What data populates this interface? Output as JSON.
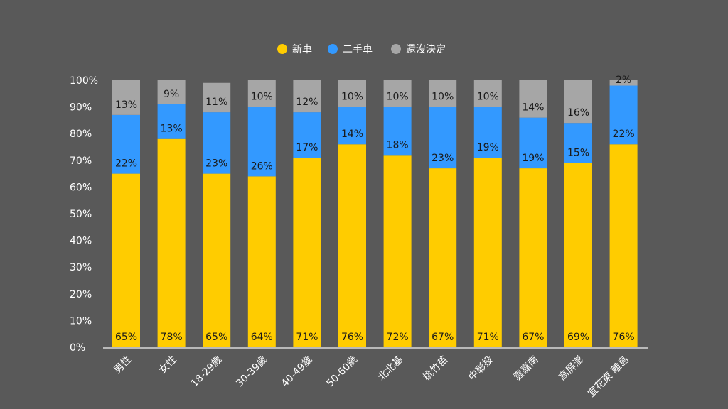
{
  "chart_data": {
    "type": "bar",
    "stacked": true,
    "categories": [
      "男性",
      "女性",
      "18-29歲",
      "30-39歲",
      "40-49歲",
      "50-60歲",
      "北北基",
      "桃竹苗",
      "中彰投",
      "雲嘉南",
      "高屏澎",
      "宜花東 離島"
    ],
    "series": [
      {
        "name": "新車",
        "color": "#FFCC00",
        "values": [
          65,
          78,
          65,
          64,
          71,
          76,
          72,
          67,
          71,
          67,
          69,
          76
        ]
      },
      {
        "name": "二手車",
        "color": "#3399FF",
        "values": [
          22,
          13,
          23,
          26,
          17,
          14,
          18,
          23,
          19,
          19,
          15,
          22
        ]
      },
      {
        "name": "還沒決定",
        "color": "#A6A6A6",
        "values": [
          13,
          9,
          11,
          10,
          12,
          10,
          10,
          10,
          10,
          14,
          16,
          2
        ]
      }
    ],
    "yticks": [
      "0%",
      "10%",
      "20%",
      "30%",
      "40%",
      "50%",
      "60%",
      "70%",
      "80%",
      "90%",
      "100%"
    ],
    "ylim": [
      0,
      100
    ],
    "legend_position": "top-center",
    "grid": false,
    "label_suffix": "%"
  }
}
